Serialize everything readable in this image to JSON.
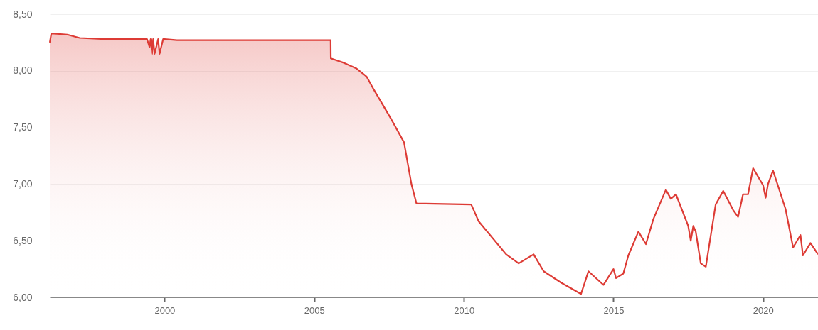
{
  "chart_data": {
    "type": "area",
    "x": [
      "1996-03",
      "1996-03-20",
      "1996-10",
      "1997-03",
      "1998-01",
      "1999-06",
      "1999-07",
      "1999-07-15",
      "1999-08",
      "1999-08-15",
      "1999-09",
      "1999-10-15",
      "1999-11",
      "1999-12-15",
      "2000-01",
      "2000-06",
      "2003-06",
      "2005-07-20",
      "2005-07-22",
      "2006-01",
      "2006-06",
      "2006-10",
      "2007-01",
      "2007-08",
      "2008-01",
      "2008-04",
      "2008-06",
      "2010-04",
      "2010-07",
      "2011-06",
      "2011-11",
      "2012-05",
      "2012-09",
      "2013-04",
      "2013-12",
      "2014-03",
      "2014-09",
      "2015-01",
      "2015-02",
      "2015-05",
      "2015-07",
      "2015-11",
      "2016-02",
      "2016-05",
      "2016-10",
      "2016-12",
      "2017-02",
      "2017-07",
      "2017-08",
      "2017-09",
      "2017-10",
      "2017-12",
      "2018-02",
      "2018-03",
      "2018-06",
      "2018-09",
      "2019-01",
      "2019-03",
      "2019-05",
      "2019-07",
      "2019-09",
      "2020-01",
      "2020-02",
      "2020-03",
      "2020-05",
      "2020-10",
      "2021-01",
      "2021-04",
      "2021-05",
      "2021-08",
      "2021-11"
    ],
    "series": [
      {
        "color": "#dd3b35",
        "values": [
          8.25,
          8.33,
          8.32,
          8.29,
          8.28,
          8.28,
          8.21,
          8.28,
          8.15,
          8.28,
          8.15,
          8.28,
          8.15,
          8.28,
          8.28,
          8.27,
          8.27,
          8.27,
          8.11,
          8.07,
          8.02,
          7.95,
          7.83,
          7.57,
          7.37,
          7.0,
          6.83,
          6.82,
          6.67,
          6.38,
          6.3,
          6.38,
          6.23,
          6.13,
          6.03,
          6.23,
          6.11,
          6.25,
          6.17,
          6.21,
          6.37,
          6.58,
          6.47,
          6.69,
          6.95,
          6.87,
          6.91,
          6.63,
          6.5,
          6.63,
          6.58,
          6.3,
          6.27,
          6.4,
          6.82,
          6.94,
          6.77,
          6.71,
          6.91,
          6.91,
          7.14,
          6.99,
          6.88,
          7.0,
          7.12,
          6.78,
          6.44,
          6.55,
          6.37,
          6.48,
          6.38
        ]
      }
    ],
    "xlim": [
      "1996-03",
      "2021-11"
    ],
    "xticks": [
      "2000",
      "2005",
      "2010",
      "2015",
      "2020"
    ],
    "ylim": [
      6,
      8.5
    ],
    "yticks": [
      {
        "value": 6,
        "label": "6,00"
      },
      {
        "value": 6.5,
        "label": "6,50"
      },
      {
        "value": 7,
        "label": "7,00"
      },
      {
        "value": 7.5,
        "label": "7,50"
      },
      {
        "value": 8,
        "label": "8,00"
      },
      {
        "value": 8.5,
        "label": "8,50"
      }
    ],
    "grid": "y"
  }
}
